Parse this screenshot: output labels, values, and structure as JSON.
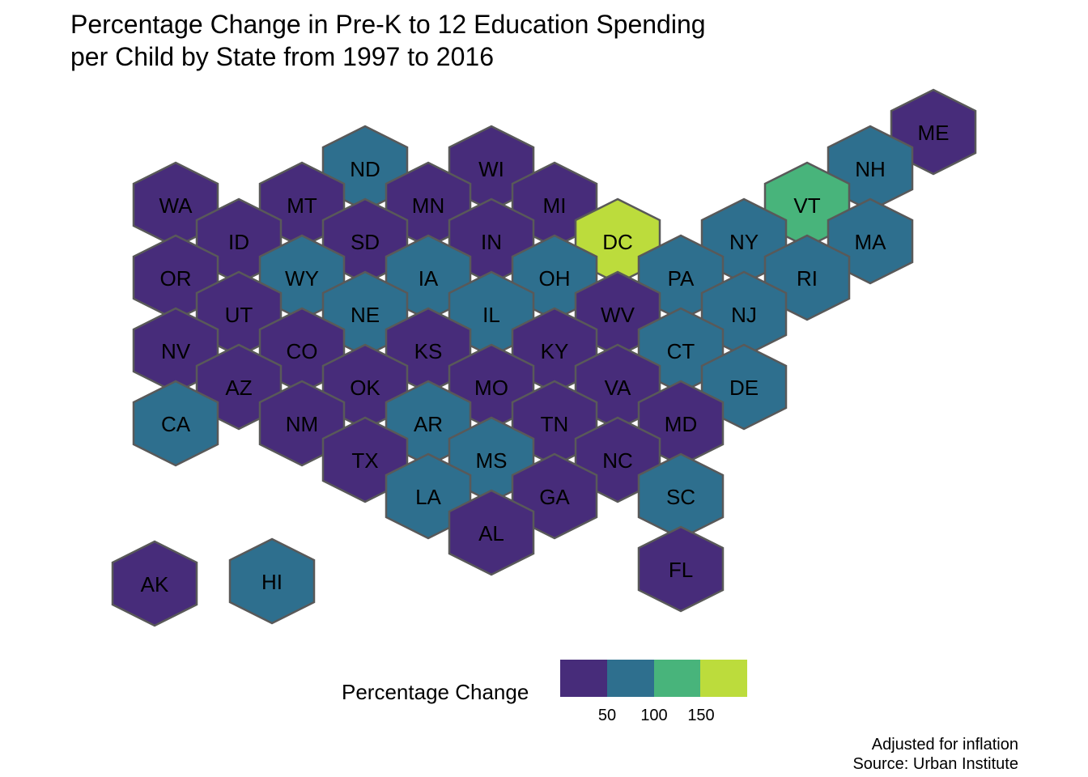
{
  "title_line1": "Percentage Change in Pre-K to 12 Education Spending",
  "title_line2": "per Child by State from 1997 to 2016",
  "legend": {
    "title": "Percentage Change",
    "colors": [
      "#472c7a",
      "#2e6f8e",
      "#48b47b",
      "#bcdc3c"
    ],
    "ticks": [
      "50",
      "100",
      "150"
    ]
  },
  "caption_line1": "Adjusted for inflation",
  "caption_line2": "Source: Urban Institute",
  "states": [
    {
      "abbr": "ME",
      "bin": 0
    },
    {
      "abbr": "ND",
      "bin": 1
    },
    {
      "abbr": "WI",
      "bin": 0
    },
    {
      "abbr": "NH",
      "bin": 1
    },
    {
      "abbr": "WA",
      "bin": 0
    },
    {
      "abbr": "MT",
      "bin": 0
    },
    {
      "abbr": "MN",
      "bin": 0
    },
    {
      "abbr": "MI",
      "bin": 0
    },
    {
      "abbr": "VT",
      "bin": 2
    },
    {
      "abbr": "ID",
      "bin": 0
    },
    {
      "abbr": "SD",
      "bin": 0
    },
    {
      "abbr": "IN",
      "bin": 0
    },
    {
      "abbr": "DC",
      "bin": 3
    },
    {
      "abbr": "NY",
      "bin": 1
    },
    {
      "abbr": "MA",
      "bin": 1
    },
    {
      "abbr": "OR",
      "bin": 0
    },
    {
      "abbr": "WY",
      "bin": 1
    },
    {
      "abbr": "IA",
      "bin": 1
    },
    {
      "abbr": "OH",
      "bin": 1
    },
    {
      "abbr": "PA",
      "bin": 1
    },
    {
      "abbr": "RI",
      "bin": 1
    },
    {
      "abbr": "UT",
      "bin": 0
    },
    {
      "abbr": "NE",
      "bin": 1
    },
    {
      "abbr": "IL",
      "bin": 1
    },
    {
      "abbr": "WV",
      "bin": 0
    },
    {
      "abbr": "NJ",
      "bin": 1
    },
    {
      "abbr": "NV",
      "bin": 0
    },
    {
      "abbr": "CO",
      "bin": 0
    },
    {
      "abbr": "KS",
      "bin": 0
    },
    {
      "abbr": "KY",
      "bin": 0
    },
    {
      "abbr": "CT",
      "bin": 1
    },
    {
      "abbr": "AZ",
      "bin": 0
    },
    {
      "abbr": "OK",
      "bin": 0
    },
    {
      "abbr": "MO",
      "bin": 0
    },
    {
      "abbr": "VA",
      "bin": 0
    },
    {
      "abbr": "DE",
      "bin": 1
    },
    {
      "abbr": "CA",
      "bin": 1
    },
    {
      "abbr": "NM",
      "bin": 0
    },
    {
      "abbr": "AR",
      "bin": 1
    },
    {
      "abbr": "TN",
      "bin": 0
    },
    {
      "abbr": "MD",
      "bin": 0
    },
    {
      "abbr": "TX",
      "bin": 0
    },
    {
      "abbr": "MS",
      "bin": 1
    },
    {
      "abbr": "NC",
      "bin": 0
    },
    {
      "abbr": "LA",
      "bin": 1
    },
    {
      "abbr": "GA",
      "bin": 0
    },
    {
      "abbr": "SC",
      "bin": 1
    },
    {
      "abbr": "AL",
      "bin": 0
    },
    {
      "abbr": "FL",
      "bin": 0
    },
    {
      "abbr": "AK",
      "bin": 0
    },
    {
      "abbr": "HI",
      "bin": 1
    }
  ]
}
